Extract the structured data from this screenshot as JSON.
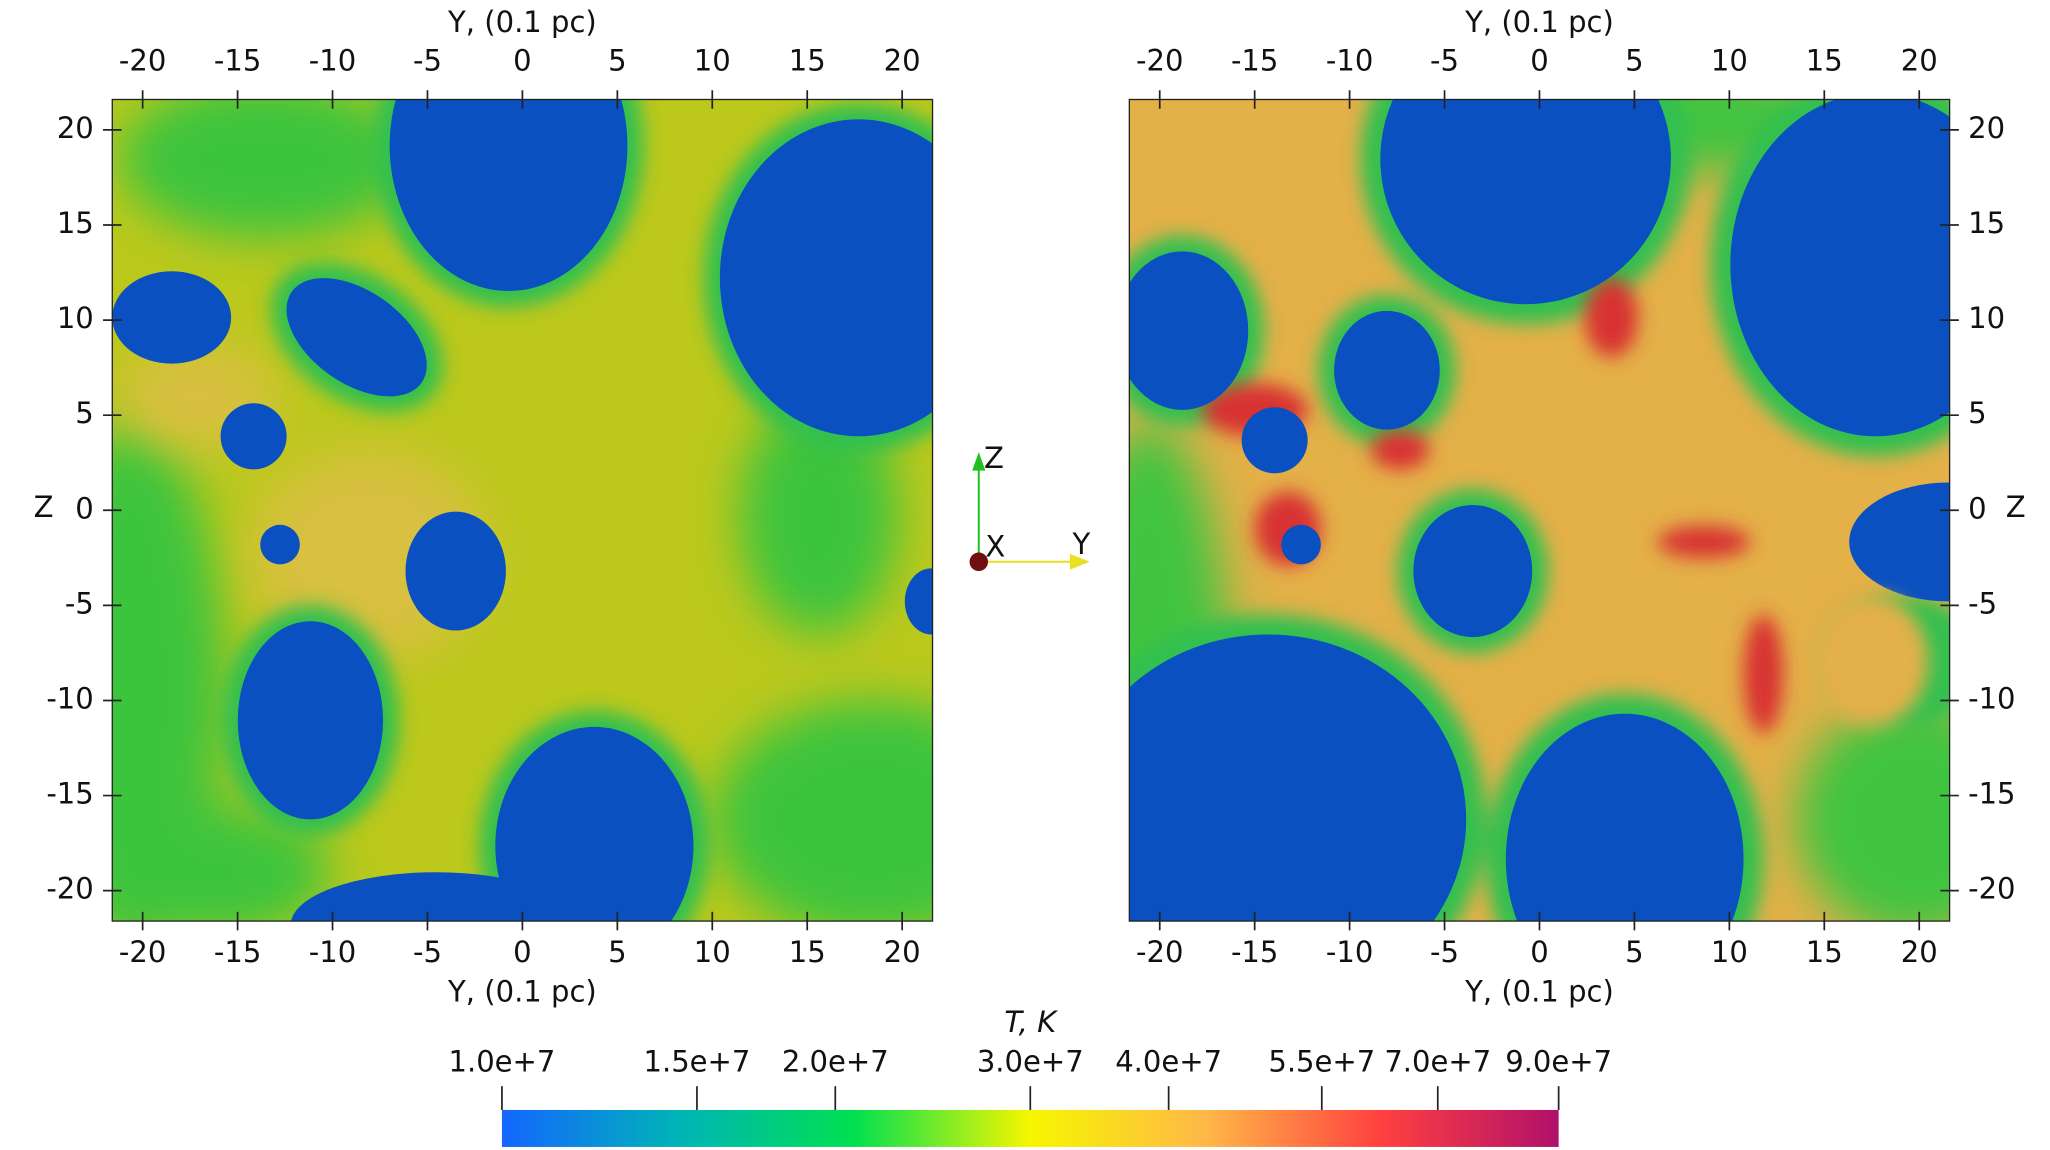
{
  "chart_data": [
    {
      "type": "heatmap",
      "xlabel": "Y, (0.1 pc)",
      "ylabel": "Z",
      "yaxis_side": "left",
      "xlim": [
        -21.6,
        21.6
      ],
      "ylim": [
        -21.6,
        21.6
      ],
      "xticks": [
        -20,
        -15,
        -10,
        -5,
        0,
        5,
        10,
        15,
        20
      ],
      "yticks": [
        -20,
        -15,
        -10,
        -5,
        0,
        5,
        10,
        15,
        20
      ]
    },
    {
      "type": "heatmap",
      "xlabel": "Y, (0.1 pc)",
      "ylabel": "Z",
      "yaxis_side": "right",
      "xlim": [
        -21.6,
        21.6
      ],
      "ylim": [
        -21.6,
        21.6
      ],
      "xticks": [
        -20,
        -15,
        -10,
        -5,
        0,
        5,
        10,
        15,
        20
      ],
      "yticks": [
        -20,
        -15,
        -10,
        -5,
        0,
        5,
        10,
        15,
        20
      ]
    }
  ],
  "colorbar": {
    "title": "T, K",
    "log_scale": true,
    "lim": [
      10000000,
      90000000
    ],
    "ticks": [
      {
        "value": 10000000,
        "label": "1.0e+7"
      },
      {
        "value": 15000000,
        "label": "1.5e+7"
      },
      {
        "value": 20000000,
        "label": "2.0e+7"
      },
      {
        "value": 30000000,
        "label": "3.0e+7"
      },
      {
        "value": 40000000,
        "label": "4.0e+7"
      },
      {
        "value": 55000000,
        "label": "5.5e+7"
      },
      {
        "value": 70000000,
        "label": "7.0e+7"
      },
      {
        "value": 90000000,
        "label": "9.0e+7"
      }
    ],
    "colors": [
      "#1466ff",
      "#00b4b8",
      "#00e050",
      "#f6f600",
      "#ffb848",
      "#ff4040",
      "#b0106a"
    ]
  },
  "orientation_axes": {
    "z": "Z",
    "x": "X",
    "y": "Y"
  }
}
